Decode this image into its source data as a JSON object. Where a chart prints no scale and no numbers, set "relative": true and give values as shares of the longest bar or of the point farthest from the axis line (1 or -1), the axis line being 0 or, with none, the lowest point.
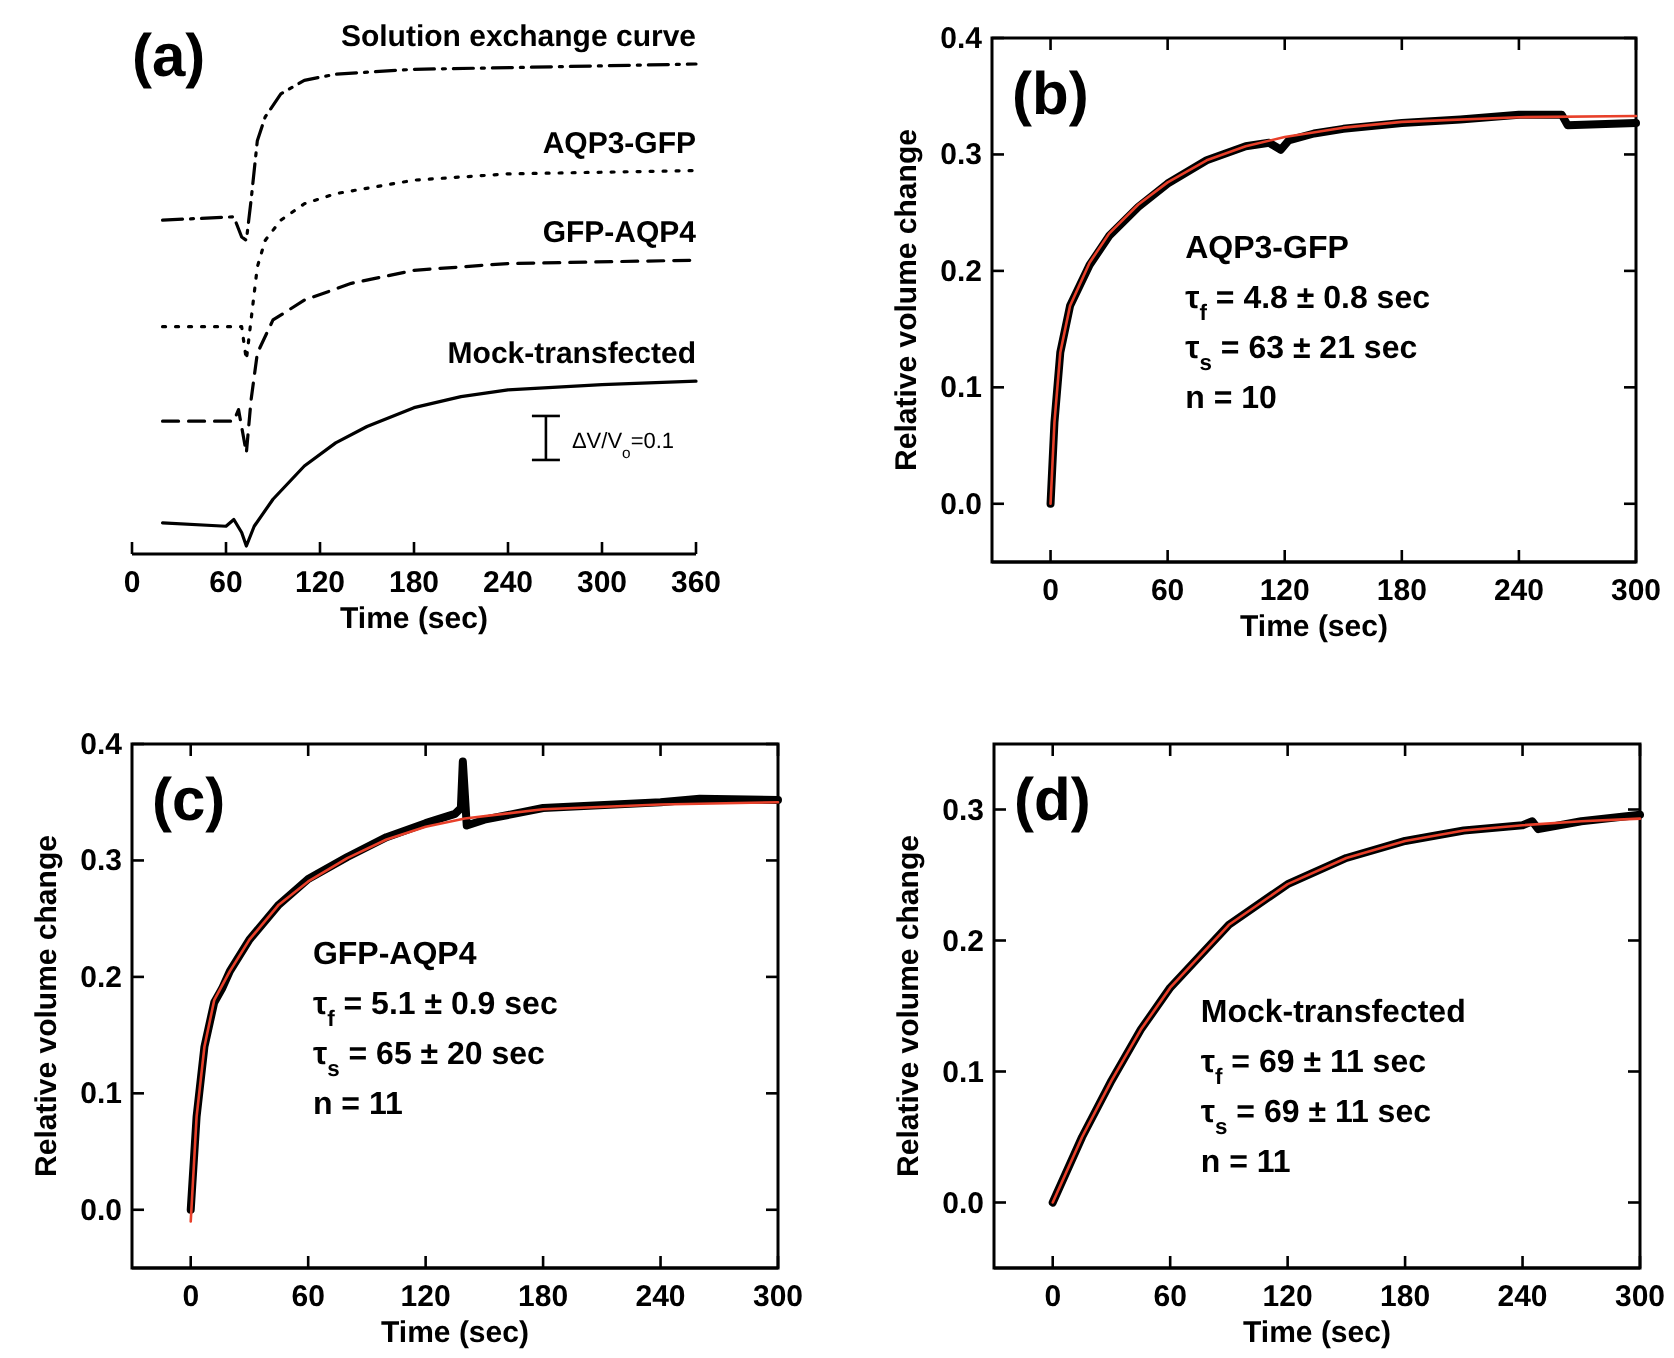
{
  "chart_data": [
    {
      "type": "line",
      "title": "(a)",
      "xlabel": "Time (sec)",
      "relative": true,
      "tick_labels": "x",
      "xlim": [
        0,
        360
      ],
      "xticks": [
        0,
        60,
        120,
        180,
        240,
        300,
        360
      ],
      "annotations": [
        "ΔV/V$_{o}$=0.1"
      ],
      "series": [
        {
          "name": "Solution exchange curve",
          "color": "#000000",
          "line_style": "dashdot",
          "x": [
            19.5,
            65,
            70,
            73,
            76,
            80,
            85,
            95,
            110,
            130,
            180,
            250,
            360
          ],
          "values": [
            0.676,
            0.683,
            0.641,
            0.634,
            0.717,
            0.841,
            0.89,
            0.938,
            0.966,
            0.979,
            0.989,
            0.993,
            1.0
          ]
        },
        {
          "name": "AQP3-GFP",
          "color": "#000000",
          "line_style": "dotted",
          "x": [
            19.5,
            70,
            73,
            76,
            80,
            85,
            95,
            110,
            130,
            180,
            240,
            360
          ],
          "values": [
            0.455,
            0.455,
            0.386,
            0.469,
            0.579,
            0.634,
            0.676,
            0.71,
            0.731,
            0.759,
            0.772,
            0.779
          ]
        },
        {
          "name": "GFP-AQP4",
          "color": "#000000",
          "line_style": "dashed",
          "x": [
            19.5,
            65,
            68,
            73,
            76,
            80,
            90,
            110,
            140,
            180,
            240,
            360
          ],
          "values": [
            0.259,
            0.259,
            0.283,
            0.193,
            0.303,
            0.4,
            0.469,
            0.51,
            0.545,
            0.572,
            0.586,
            0.593
          ]
        },
        {
          "name": "Mock-transfected",
          "color": "#000000",
          "line_style": "solid",
          "x": [
            19.5,
            60,
            65,
            70,
            73,
            78,
            90,
            110,
            130,
            150,
            180,
            210,
            240,
            300,
            360
          ],
          "values": [
            0.048,
            0.041,
            0.055,
            0.028,
            0.0,
            0.041,
            0.097,
            0.166,
            0.214,
            0.248,
            0.287,
            0.31,
            0.324,
            0.335,
            0.342
          ]
        }
      ]
    },
    {
      "type": "line",
      "title": "(b)",
      "xlabel": "Time (sec)",
      "ylabel": "Relative volume change",
      "xlim": [
        -30,
        300
      ],
      "xticks": [
        0,
        60,
        120,
        180,
        240,
        300
      ],
      "ylim": [
        -0.05,
        0.4
      ],
      "yticks": [
        {
          "value": 0,
          "label": "0.0"
        },
        {
          "value": 0.1,
          "label": "0.1"
        },
        {
          "value": 0.2,
          "label": "0.2"
        },
        {
          "value": 0.3,
          "label": "0.3"
        },
        {
          "value": 0.4,
          "label": "0.4"
        }
      ],
      "annotations": [
        "AQP3-GFP",
        "τ$_{f}$ = 4.8 ± 0.8 sec",
        "τ$_{s}$ = 63 ± 21 sec",
        "n = 10"
      ],
      "series": [
        {
          "color": "#000000",
          "x": [
            0,
            2,
            5,
            10,
            20,
            30,
            45,
            60,
            80,
            100,
            112,
            118,
            122,
            135,
            150,
            180,
            210,
            240,
            262,
            265,
            300
          ],
          "values": [
            0,
            0.07,
            0.13,
            0.17,
            0.205,
            0.23,
            0.255,
            0.275,
            0.295,
            0.307,
            0.31,
            0.304,
            0.312,
            0.318,
            0.322,
            0.327,
            0.33,
            0.334,
            0.334,
            0.325,
            0.327
          ]
        },
        {
          "color": "#e8402a",
          "x": [
            0,
            2,
            5,
            10,
            20,
            30,
            45,
            60,
            80,
            100,
            120,
            150,
            180,
            240,
            300
          ],
          "values": [
            0,
            0.07,
            0.13,
            0.17,
            0.207,
            0.232,
            0.257,
            0.276,
            0.295,
            0.307,
            0.315,
            0.323,
            0.328,
            0.332,
            0.333
          ]
        }
      ]
    },
    {
      "type": "line",
      "title": "(c)",
      "xlabel": "Time (sec)",
      "ylabel": "Relative volume change",
      "xlim": [
        -30,
        300
      ],
      "xticks": [
        0,
        60,
        120,
        180,
        240,
        300
      ],
      "ylim": [
        -0.05,
        0.4
      ],
      "yticks": [
        {
          "value": 0,
          "label": "0.0"
        },
        {
          "value": 0.1,
          "label": "0.1"
        },
        {
          "value": 0.2,
          "label": "0.2"
        },
        {
          "value": 0.3,
          "label": "0.3"
        },
        {
          "value": 0.4,
          "label": "0.4"
        }
      ],
      "annotations": [
        "GFP-AQP4",
        "τ$_{f}$ = 5.1 ± 0.9 sec",
        "τ$_{s}$ = 65 ± 20 sec",
        "n = 11"
      ],
      "series": [
        {
          "color": "#000000",
          "x": [
            0,
            3,
            7,
            12,
            16,
            20,
            30,
            45,
            60,
            80,
            100,
            120,
            135,
            138,
            139,
            141,
            150,
            180,
            240,
            260,
            300
          ],
          "values": [
            0,
            0.08,
            0.14,
            0.178,
            0.19,
            0.205,
            0.232,
            0.262,
            0.284,
            0.303,
            0.32,
            0.332,
            0.34,
            0.345,
            0.385,
            0.33,
            0.335,
            0.345,
            0.35,
            0.353,
            0.352
          ]
        },
        {
          "color": "#e8402a",
          "x": [
            0,
            3,
            7,
            12,
            20,
            30,
            45,
            60,
            80,
            100,
            120,
            140,
            180,
            240,
            300
          ],
          "values": [
            -0.01,
            0.08,
            0.14,
            0.18,
            0.205,
            0.232,
            0.262,
            0.282,
            0.302,
            0.318,
            0.329,
            0.336,
            0.344,
            0.348,
            0.35
          ]
        }
      ]
    },
    {
      "type": "line",
      "title": "(d)",
      "xlabel": "Time (sec)",
      "ylabel": "Relative volume change",
      "xlim": [
        -30,
        300
      ],
      "xticks": [
        0,
        60,
        120,
        180,
        240,
        300
      ],
      "ylim": [
        -0.05,
        0.35
      ],
      "yticks": [
        {
          "value": 0,
          "label": "0.0"
        },
        {
          "value": 0.1,
          "label": "0.1"
        },
        {
          "value": 0.2,
          "label": "0.2"
        },
        {
          "value": 0.3,
          "label": "0.3"
        }
      ],
      "annotations": [
        "Mock-transfected",
        "τ$_{f}$ = 69 ± 11 sec",
        "τ$_{s}$ = 69 ± 11 sec",
        "n = 11"
      ],
      "series": [
        {
          "color": "#000000",
          "x": [
            0,
            15,
            30,
            45,
            60,
            90,
            120,
            150,
            180,
            210,
            240,
            245,
            248,
            270,
            300
          ],
          "values": [
            0,
            0.05,
            0.093,
            0.132,
            0.164,
            0.212,
            0.243,
            0.263,
            0.276,
            0.284,
            0.288,
            0.291,
            0.285,
            0.291,
            0.296
          ]
        },
        {
          "color": "#e8402a",
          "x": [
            0,
            15,
            30,
            45,
            60,
            90,
            120,
            150,
            180,
            210,
            240,
            270,
            300
          ],
          "values": [
            0,
            0.05,
            0.093,
            0.132,
            0.164,
            0.212,
            0.243,
            0.263,
            0.276,
            0.284,
            0.288,
            0.291,
            0.293
          ]
        }
      ]
    }
  ]
}
